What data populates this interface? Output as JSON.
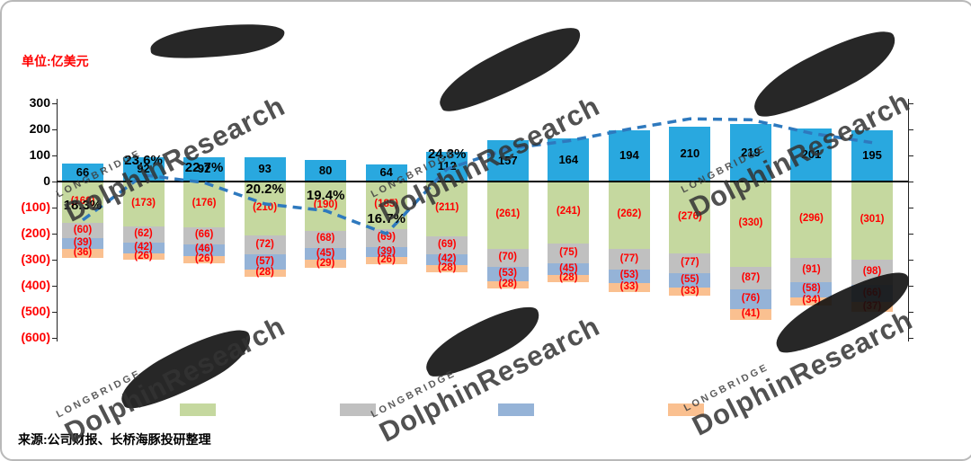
{
  "frame": {
    "unit_label": "单位:亿美元",
    "source": "来源:公司财报、长桥海豚投研整理",
    "watermark": {
      "brand_small": "LONGBRIDGE",
      "brand_large": "DolphinResearch"
    }
  },
  "y_axis": {
    "labels": [
      "300",
      "200",
      "100",
      "0",
      "(100)",
      "(200)",
      "(300)",
      "(400)",
      "(500)",
      "(600)"
    ]
  },
  "chart_data": {
    "type": "bar",
    "subtype": "stacked-bars-with-dashed-percent-line",
    "unit": "亿美元",
    "n_columns": 14,
    "ylim": [
      -600,
      300
    ],
    "grid": "zero-line-only",
    "series": [
      {
        "name": "blue-positive-bars",
        "color": "#29A8DF",
        "values": [
          66,
          92,
          92,
          93,
          80,
          64,
          112,
          157,
          164,
          194,
          210,
          219,
          201,
          195
        ],
        "labels": [
          "66",
          "92",
          "92",
          "93",
          "80",
          "64",
          "112",
          "157",
          "164",
          "194",
          "210",
          "219",
          "201",
          "195"
        ]
      },
      {
        "name": "green-negative-stack",
        "color": "#C5D89F",
        "values": [
          -160,
          -173,
          -176,
          -210,
          -190,
          -185,
          -211,
          -261,
          -241,
          -262,
          -276,
          -330,
          -296,
          -301
        ],
        "labels": [
          "(160)",
          "(173)",
          "(176)",
          "(210)",
          "(190)",
          "(185)",
          "(211)",
          "(261)",
          "(241)",
          "(262)",
          "(276)",
          "(330)",
          "(296)",
          "(301)"
        ]
      },
      {
        "name": "gray-negative-stack",
        "color": "#C0C0C0",
        "values": [
          -60,
          -62,
          -66,
          -72,
          -68,
          -69,
          -69,
          -70,
          -75,
          -77,
          -77,
          -87,
          -91,
          -98
        ],
        "labels": [
          "(60)",
          "(62)",
          "(66)",
          "(72)",
          "(68)",
          "(69)",
          "(69)",
          "(70)",
          "(75)",
          "(77)",
          "(77)",
          "(87)",
          "(91)",
          "(98)"
        ]
      },
      {
        "name": "steelblue-negative-stack",
        "color": "#95B3D7",
        "values": [
          -39,
          -42,
          -46,
          -57,
          -45,
          -39,
          -42,
          -53,
          -45,
          -53,
          -55,
          -76,
          -58,
          -66
        ],
        "labels": [
          "(39)",
          "(42)",
          "(46)",
          "(57)",
          "(45)",
          "(39)",
          "(42)",
          "(53)",
          "(45)",
          "(53)",
          "(55)",
          "(76)",
          "(58)",
          "(66)"
        ]
      },
      {
        "name": "orange-negative-stack",
        "color": "#FAC090",
        "values": [
          -36,
          -26,
          -26,
          -28,
          -29,
          -26,
          -28,
          -28,
          -28,
          -33,
          -33,
          -41,
          -34,
          -37
        ],
        "labels": [
          "(36)",
          "(26)",
          "(26)",
          "(28)",
          "(29)",
          "(26)",
          "(28)",
          "(28)",
          "(28)",
          "(33)",
          "(33)",
          "(41)",
          "(34)",
          "(37)"
        ]
      }
    ],
    "line": {
      "name": "dashed-percent-line",
      "color": "#2E79BE",
      "style": "dashed",
      "percent": [
        18.3,
        23.6,
        22.7,
        20.2,
        19.4,
        16.7,
        24.3,
        26.7,
        27.6,
        29.0,
        30.2,
        30.1,
        28.5,
        27.4
      ],
      "labels": [
        "18.3%",
        "23.6%",
        "22.7%",
        "20.2%",
        "19.4%",
        "16.7%",
        "24.3%",
        "",
        "",
        "",
        "",
        "",
        "",
        ""
      ]
    }
  },
  "legend": [
    {
      "color": "#C5D89F",
      "label": ""
    },
    {
      "color": "#C0C0C0",
      "label": ""
    },
    {
      "color": "#95B3D7",
      "label": ""
    },
    {
      "color": "#FAC090",
      "label": ""
    }
  ]
}
